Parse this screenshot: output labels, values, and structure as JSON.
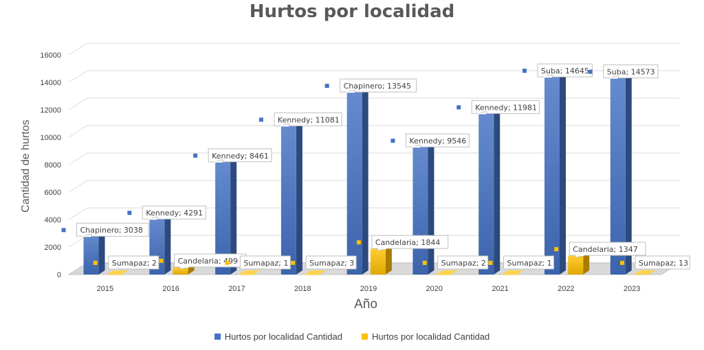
{
  "chart_data": {
    "type": "bar",
    "title": "Hurtos por localidad",
    "xlabel": "Año",
    "ylabel": "Cantidad de hurtos",
    "ylim": [
      0,
      16000
    ],
    "yticks": [
      0,
      2000,
      4000,
      6000,
      8000,
      10000,
      12000,
      14000,
      16000
    ],
    "grid": true,
    "legend_position": "bottom",
    "categories": [
      "2015",
      "2016",
      "2017",
      "2018",
      "2019",
      "2020",
      "2021",
      "2022",
      "2023"
    ],
    "series": [
      {
        "name": "Hurtos por localidad Cantidad",
        "color": "#4472C4",
        "values": [
          3038,
          4291,
          8461,
          11081,
          13545,
          9546,
          11981,
          14645,
          14573
        ],
        "labels": [
          "Chapinero; 3038",
          "Kennedy; 4291",
          "Kennedy; 8461",
          "Kennedy; 11081",
          "Chapinero; 13545",
          "Kennedy; 9546",
          "Kennedy; 11981",
          "Suba; 14645",
          "Suba; 14573"
        ]
      },
      {
        "name": "Hurtos por localidad Cantidad",
        "color": "#FFC000",
        "values": [
          2,
          499,
          1,
          3,
          1844,
          2,
          1,
          1347,
          13
        ],
        "labels": [
          "Sumapaz; 2",
          "Candelaria; 499",
          "Sumapaz; 1",
          "Sumapaz; 3",
          "Candelaria; 1844",
          "Sumapaz; 2",
          "Sumapaz; 1",
          "Candelaria; 1347",
          "Sumapaz; 13"
        ]
      }
    ]
  }
}
